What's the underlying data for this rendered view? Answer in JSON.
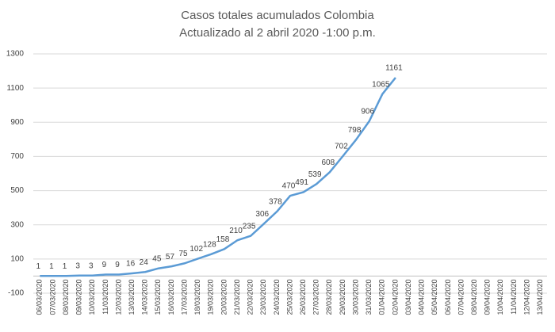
{
  "chart_data": {
    "type": "line",
    "title": "Casos totales acumulados Colombia",
    "subtitle": "Actualizado al 2 abril 2020 -1:00 p.m.",
    "categories": [
      "06/03/2020",
      "07/03/2020",
      "08/03/2020",
      "09/03/2020",
      "10/03/2020",
      "11/03/2020",
      "12/03/2020",
      "13/03/2020",
      "14/03/2020",
      "15/03/2020",
      "16/03/2020",
      "17/03/2020",
      "18/03/2020",
      "19/03/2020",
      "20/03/2020",
      "21/03/2020",
      "22/03/2020",
      "23/03/2020",
      "24/03/2020",
      "25/03/2020",
      "26/03/2020",
      "27/03/2020",
      "28/03/2020",
      "29/03/2020",
      "30/03/2020",
      "31/03/2020",
      "01/04/2020",
      "02/04/2020",
      "03/04/2020",
      "04/04/2020",
      "05/04/2020",
      "06/04/2020",
      "07/04/2020",
      "08/04/2020",
      "09/04/2020",
      "10/04/2020",
      "11/04/2020",
      "12/04/2020",
      "13/04/2020"
    ],
    "values": [
      1,
      1,
      1,
      3,
      3,
      9,
      9,
      16,
      24,
      45,
      57,
      75,
      102,
      128,
      158,
      210,
      235,
      306,
      378,
      470,
      491,
      539,
      608,
      702,
      798,
      906,
      1065,
      1161,
      null,
      null,
      null,
      null,
      null,
      null,
      null,
      null,
      null,
      null,
      null
    ],
    "color": "#5b9bd5",
    "ylim": [
      -100,
      1300
    ],
    "yticks": [
      -100,
      100,
      300,
      500,
      700,
      900,
      1100,
      1300
    ],
    "grid": true
  }
}
